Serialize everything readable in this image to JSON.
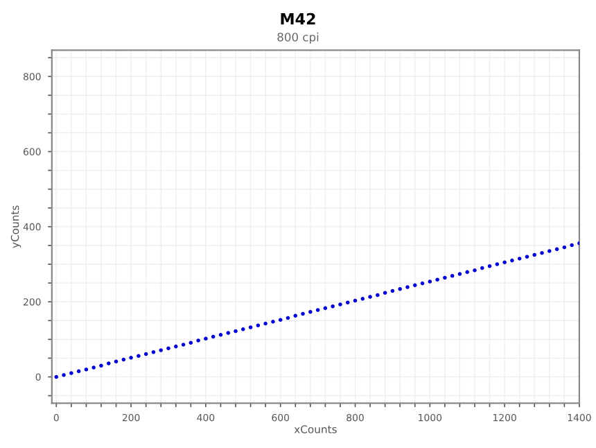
{
  "chart_data": {
    "type": "scatter",
    "title": "M42",
    "subtitle": "800 cpi",
    "xlabel": "xCounts",
    "ylabel": "yCounts",
    "x": [
      0,
      20,
      40,
      60,
      80,
      100,
      120,
      140,
      160,
      180,
      200,
      220,
      240,
      260,
      280,
      300,
      320,
      340,
      360,
      380,
      400,
      420,
      440,
      460,
      480,
      500,
      520,
      540,
      560,
      580,
      600,
      620,
      640,
      660,
      680,
      700,
      720,
      740,
      760,
      780,
      800,
      820,
      840,
      860,
      880,
      900,
      920,
      940,
      960,
      980,
      1000,
      1020,
      1040,
      1060,
      1080,
      1100,
      1120,
      1140,
      1160,
      1180,
      1200,
      1220,
      1240,
      1260,
      1280,
      1300,
      1320,
      1340,
      1360,
      1380,
      1400
    ],
    "series": [
      {
        "color": "#0000cc",
        "values": [
          0,
          5,
          10,
          15,
          20,
          25,
          30,
          36,
          41,
          46,
          51,
          56,
          61,
          66,
          71,
          76,
          81,
          86,
          91,
          97,
          102,
          107,
          112,
          117,
          122,
          127,
          132,
          137,
          142,
          147,
          152,
          157,
          163,
          168,
          173,
          178,
          183,
          188,
          193,
          198,
          203,
          208,
          213,
          218,
          224,
          229,
          234,
          239,
          244,
          249,
          254,
          259,
          264,
          269,
          274,
          279,
          284,
          290,
          295,
          300,
          305,
          310,
          315,
          320,
          325,
          330,
          335,
          340,
          345,
          351,
          356
        ]
      }
    ],
    "marker": "circle",
    "grid": true,
    "xlim": [
      -12,
      1400
    ],
    "ylim": [
      -70,
      870
    ],
    "xticks": [
      0,
      {
        "value": 40,
        "label": null
      },
      {
        "value": 80,
        "label": null
      },
      {
        "value": 120,
        "label": null
      },
      {
        "value": 160,
        "label": null
      },
      200,
      {
        "value": 240,
        "label": null
      },
      {
        "value": 280,
        "label": null
      },
      {
        "value": 320,
        "label": null
      },
      {
        "value": 360,
        "label": null
      },
      400,
      {
        "value": 440,
        "label": null
      },
      {
        "value": 480,
        "label": null
      },
      {
        "value": 520,
        "label": null
      },
      {
        "value": 560,
        "label": null
      },
      600,
      {
        "value": 640,
        "label": null
      },
      {
        "value": 680,
        "label": null
      },
      {
        "value": 720,
        "label": null
      },
      {
        "value": 760,
        "label": null
      },
      800,
      {
        "value": 840,
        "label": null
      },
      {
        "value": 880,
        "label": null
      },
      {
        "value": 920,
        "label": null
      },
      {
        "value": 960,
        "label": null
      },
      1000,
      {
        "value": 1040,
        "label": null
      },
      {
        "value": 1080,
        "label": null
      },
      {
        "value": 1120,
        "label": null
      },
      {
        "value": 1160,
        "label": null
      },
      1200,
      {
        "value": 1240,
        "label": null
      },
      {
        "value": 1280,
        "label": null
      },
      {
        "value": 1320,
        "label": null
      },
      {
        "value": 1360,
        "label": null
      },
      1400
    ],
    "yticks": [
      {
        "value": -50,
        "label": null
      },
      0,
      {
        "value": 50,
        "label": null
      },
      {
        "value": 100,
        "label": null
      },
      {
        "value": 150,
        "label": null
      },
      200,
      {
        "value": 250,
        "label": null
      },
      {
        "value": 300,
        "label": null
      },
      {
        "value": 350,
        "label": null
      },
      400,
      {
        "value": 450,
        "label": null
      },
      {
        "value": 500,
        "label": null
      },
      {
        "value": 550,
        "label": null
      },
      600,
      {
        "value": 650,
        "label": null
      },
      {
        "value": 700,
        "label": null
      },
      {
        "value": 750,
        "label": null
      },
      800,
      {
        "value": 850,
        "label": null
      }
    ]
  }
}
